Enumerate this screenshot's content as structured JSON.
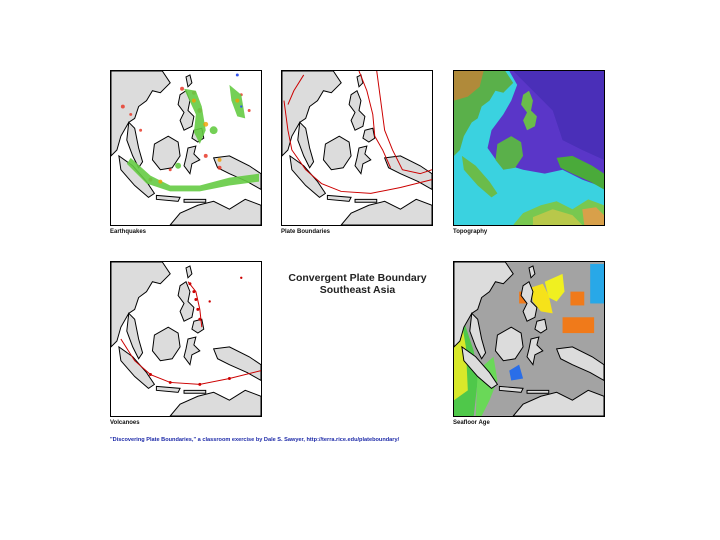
{
  "panels": {
    "earthquakes": {
      "caption": "Earthquakes"
    },
    "plate_boundaries": {
      "caption": "Plate Boundaries"
    },
    "topography": {
      "caption": "Topography"
    },
    "volcanoes": {
      "caption": "Volcanoes"
    },
    "seafloor_age": {
      "caption": "Seafloor Age"
    }
  },
  "title": {
    "line1": "Convergent Plate Boundary",
    "line2": "Southeast Asia"
  },
  "credit": "\"Discovering Plate Boundaries,\" a classroom exercise by Dale S. Sawyer, http://terra.rice.edu/plateboundary/",
  "colors": {
    "land": "#d9d9d9",
    "boundary": "#cc0000",
    "ocean_gray": "#9e9e9e",
    "deep_ocean": "#5a36c8"
  }
}
